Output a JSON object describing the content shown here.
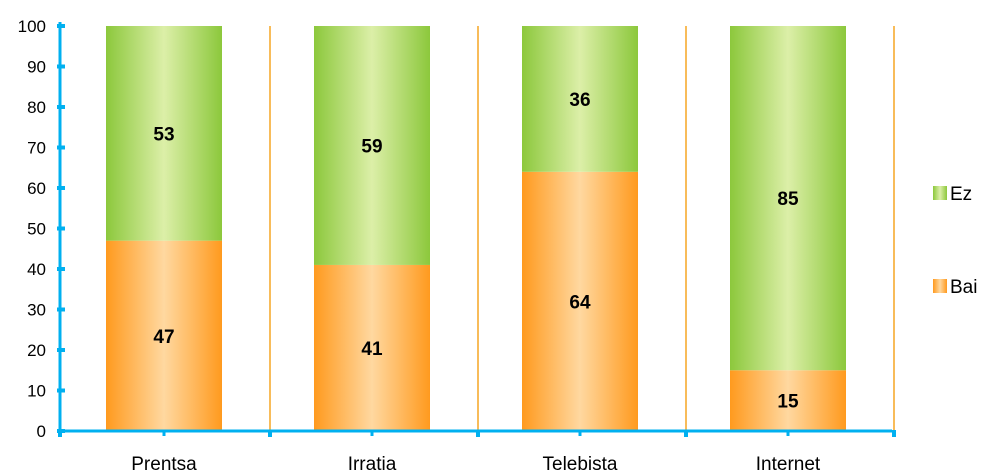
{
  "chart_data": {
    "type": "bar",
    "stacked": true,
    "categories": [
      "Prentsa",
      "Irratia",
      "Telebista",
      "Internet"
    ],
    "series": [
      {
        "name": "Bai",
        "values": [
          47,
          41,
          64,
          15
        ],
        "color": "#FF9A1E",
        "highlight": "#FFD8A0"
      },
      {
        "name": "Ez",
        "values": [
          53,
          59,
          36,
          85
        ],
        "color": "#8CC83C",
        "highlight": "#DCEFA8"
      }
    ],
    "ylim": [
      0,
      100
    ],
    "yticks": [
      0,
      10,
      20,
      30,
      40,
      50,
      60,
      70,
      80,
      90,
      100
    ],
    "grid": false,
    "legend_position": "right",
    "axis_color": "#00B0F0",
    "separator_color": "#F5A623"
  }
}
